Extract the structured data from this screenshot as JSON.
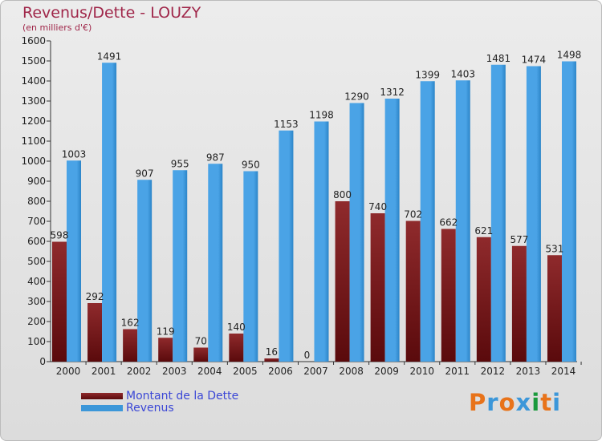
{
  "chart_data": {
    "type": "bar",
    "title": "Revenus/Dette - LOUZY",
    "subtitle": "(en milliers d'€)",
    "categories": [
      "2000",
      "2001",
      "2002",
      "2003",
      "2004",
      "2005",
      "2006",
      "2007",
      "2008",
      "2009",
      "2010",
      "2011",
      "2012",
      "2013",
      "2014"
    ],
    "series": [
      {
        "name": "Montant de la Dette",
        "color": "#7a1a1e",
        "values": [
          598,
          292,
          162,
          119,
          70,
          140,
          16,
          0,
          800,
          740,
          702,
          662,
          621,
          577,
          531
        ]
      },
      {
        "name": "Revenus",
        "color": "#3c97d9",
        "values": [
          1003,
          1491,
          907,
          955,
          987,
          950,
          1153,
          1198,
          1290,
          1312,
          1399,
          1403,
          1481,
          1474,
          1498
        ]
      }
    ],
    "yticks": [
      0,
      100,
      200,
      300,
      400,
      500,
      600,
      700,
      800,
      900,
      1000,
      1100,
      1200,
      1300,
      1400,
      1500,
      1600
    ],
    "ylim": [
      0,
      1600
    ],
    "grid": false,
    "legend_position": "bottom-left"
  },
  "legend": {
    "debt_label": "Montant de la Dette",
    "revenue_label": "Revenus"
  },
  "logo": {
    "letters": [
      "P",
      "r",
      "o",
      "x",
      "i",
      "t",
      "i"
    ],
    "colors": [
      "#e8731a",
      "#3c97d9",
      "#e8731a",
      "#3c97d9",
      "#1a9a3c",
      "#e8731a",
      "#3c97d9"
    ]
  },
  "colors": {
    "title": "#a0274a",
    "legend_text": "#3b47d6"
  }
}
